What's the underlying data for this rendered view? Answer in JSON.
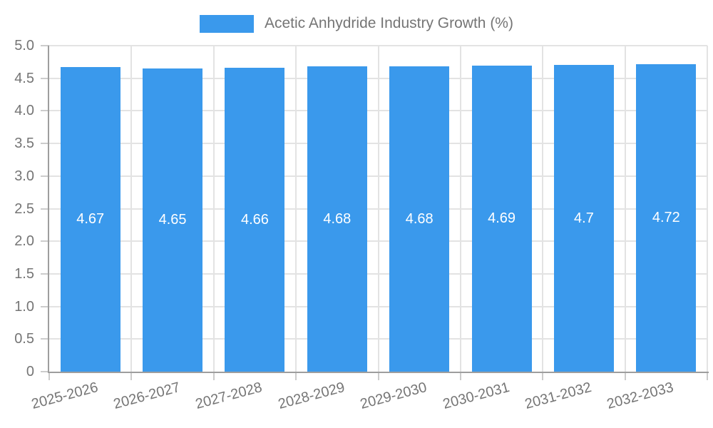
{
  "chart_data": {
    "type": "bar",
    "title": "Acetic Anhydride Industry Growth (%)",
    "categories": [
      "2025-2026",
      "2026-2027",
      "2027-2028",
      "2028-2029",
      "2029-2030",
      "2030-2031",
      "2031-2032",
      "2032-2033"
    ],
    "values": [
      4.67,
      4.65,
      4.66,
      4.68,
      4.68,
      4.69,
      4.7,
      4.72
    ],
    "value_labels": [
      "4.67",
      "4.65",
      "4.66",
      "4.68",
      "4.68",
      "4.69",
      "4.7",
      "4.72"
    ],
    "xlabel": "",
    "ylabel": "",
    "ylim": [
      0,
      5
    ],
    "ytick_step": 0.5,
    "ytick_labels": [
      "0",
      "0.5",
      "1.0",
      "1.5",
      "2.0",
      "2.5",
      "3.0",
      "3.5",
      "4.0",
      "4.5",
      "5.0"
    ],
    "legend_position": "top",
    "grid": "on",
    "colors": {
      "bar": "#3a99ec",
      "grid": "#e3e3e3",
      "axis": "#9e9e9e",
      "tick": "#cccccc",
      "label_text": "#757575",
      "value_text": "#ffffff",
      "background": "#ffffff"
    }
  }
}
